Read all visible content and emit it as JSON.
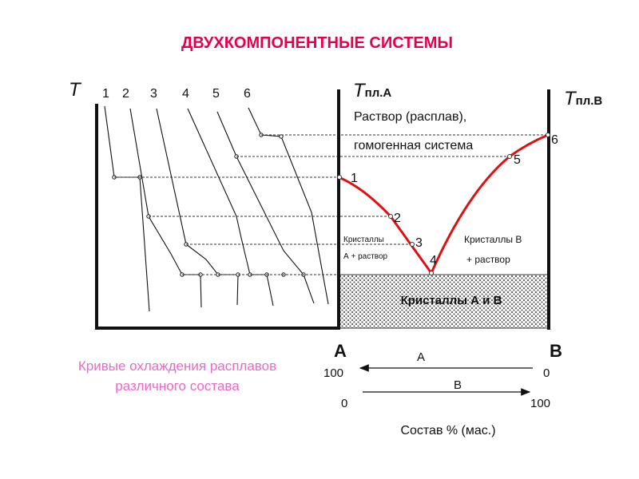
{
  "title": "ДВУХКОМПОНЕНТНЫЕ  СИСТЕМЫ",
  "colors": {
    "title": "#e6004c",
    "caption": "#ee66cc",
    "curve": "#dd1111",
    "axis": "#111111",
    "hatch": "#555555"
  },
  "cooling": {
    "axis_label": "T",
    "curve_numbers": [
      "1",
      "2",
      "3",
      "4",
      "5",
      "6"
    ],
    "caption_line1": "Кривые  охлаждения  расплавов",
    "caption_line2": "различного  состава"
  },
  "phase": {
    "tA_main": "T",
    "tA_sub": "пл.А",
    "tB_main": "T",
    "tB_sub": "пл.В",
    "melt_line1": "Раствор (расплав),",
    "melt_line2": "гомогенная система",
    "point_labels": [
      "1",
      "2",
      "3",
      "4",
      "5",
      "6"
    ],
    "left_region_line1": "Кристаллы",
    "left_region_line2": "А +  раствор",
    "right_region_line1": "Кристаллы  В",
    "right_region_line2": "+  раствор",
    "solid_label": "Кристаллы А и В",
    "label_A": "А",
    "label_B": "В"
  },
  "composition": {
    "arrow_A_label": "А",
    "arrow_B_label": "В",
    "A_left": "100",
    "A_right": "0",
    "B_left": "0",
    "B_right": "100",
    "axis_title": "Состав % (мас.)"
  }
}
